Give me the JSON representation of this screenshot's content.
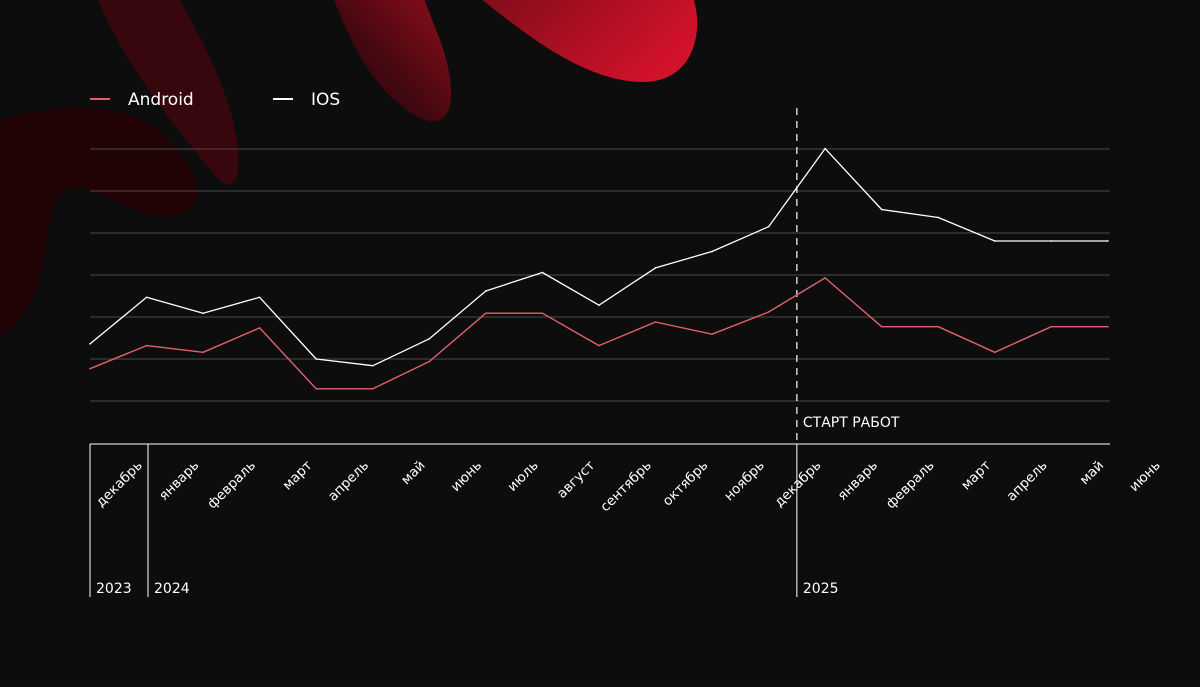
{
  "colors": {
    "background": "#0d0d0d",
    "android": "#e0606b",
    "ios": "#ffffff",
    "grid": "#4a4a4a",
    "axis": "#ffffff",
    "brand_red": "#c8102e"
  },
  "chart_data": {
    "type": "line",
    "title": "",
    "xlabel": "",
    "ylabel": "",
    "grid": true,
    "legend_position": "top-left",
    "categories": [
      "декабрь",
      "январь",
      "февраль",
      "март",
      "апрель",
      "май",
      "июнь",
      "июль",
      "август",
      "сентябрь",
      "октябрь",
      "ноябрь",
      "декабрь",
      "январь",
      "февраль",
      "март",
      "апрель",
      "май",
      "июнь"
    ],
    "series": [
      {
        "name": "Android",
        "color": "#e0606b",
        "points": [
          [
            0,
            0.77
          ],
          [
            1,
            1.32
          ],
          [
            2,
            1.16
          ],
          [
            3,
            1.74
          ],
          [
            4,
            0.29
          ],
          [
            5,
            0.29
          ],
          [
            6,
            0.94
          ],
          [
            7,
            2.09
          ],
          [
            8,
            2.09
          ],
          [
            9,
            1.32
          ],
          [
            10,
            1.88
          ],
          [
            11,
            1.59
          ],
          [
            12,
            2.12
          ],
          [
            13,
            2.93
          ],
          [
            14,
            1.77
          ],
          [
            15,
            1.77
          ],
          [
            16,
            1.16
          ],
          [
            17,
            1.77
          ],
          [
            18,
            1.77
          ]
        ]
      },
      {
        "name": "IOS",
        "color": "#ffffff",
        "points": [
          [
            0,
            1.36
          ],
          [
            1,
            2.47
          ],
          [
            2,
            2.09
          ],
          [
            3,
            2.47
          ],
          [
            4,
            1.0
          ],
          [
            5,
            0.84
          ],
          [
            6,
            1.48
          ],
          [
            7,
            2.62
          ],
          [
            8,
            3.06
          ],
          [
            9,
            2.28
          ],
          [
            10,
            3.17
          ],
          [
            11,
            3.56
          ],
          [
            12,
            4.15
          ],
          [
            13,
            6.01
          ],
          [
            14,
            4.56
          ],
          [
            15,
            4.37
          ],
          [
            16,
            3.81
          ],
          [
            17,
            3.81
          ],
          [
            18,
            3.81
          ]
        ]
      }
    ],
    "ylim": [
      0,
      6
    ],
    "annotations": [
      {
        "label": "СТАРТ РАБОТ",
        "x_index": 12.5
      }
    ],
    "year_groups": [
      {
        "label": "2023",
        "start_index": 0
      },
      {
        "label": "2024",
        "start_index": 1
      },
      {
        "label": "2025",
        "start_index": 13
      }
    ]
  }
}
